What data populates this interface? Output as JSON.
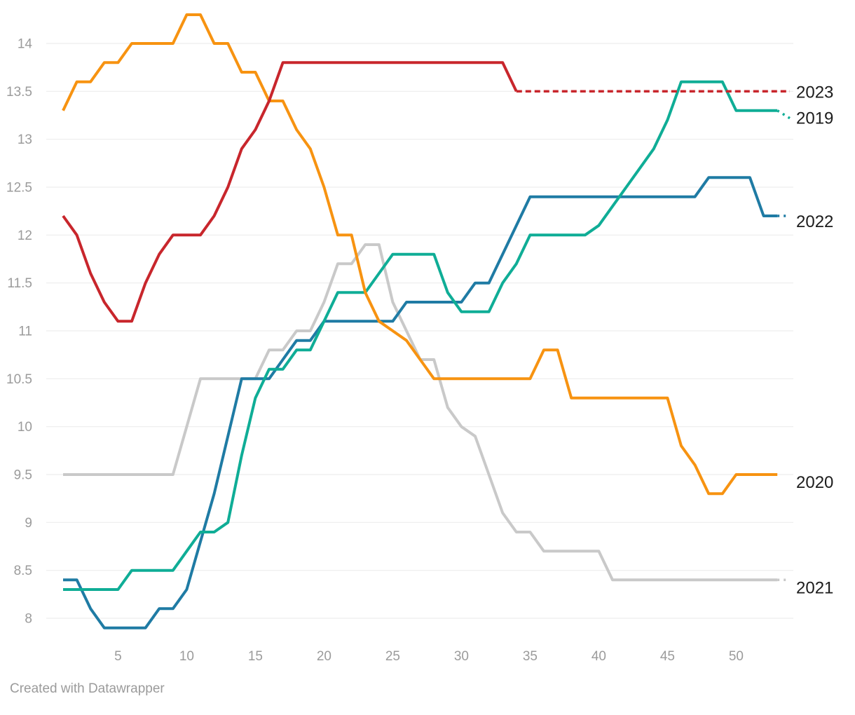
{
  "page": {
    "footer_credit": "Created with Datawrapper"
  },
  "chart_data": {
    "type": "line",
    "title": "",
    "xlabel": "",
    "ylabel": "",
    "x_unit": "week of year",
    "x_ticks": [
      5,
      10,
      15,
      20,
      25,
      30,
      35,
      40,
      45,
      50
    ],
    "y_ticks": [
      8,
      8.5,
      9,
      9.5,
      10,
      10.5,
      11,
      11.5,
      12,
      12.5,
      13,
      13.5,
      14
    ],
    "xlim": [
      1,
      53
    ],
    "ylim": [
      7.75,
      14.45
    ],
    "grid": "horizontal",
    "legend_position": "right-edge-labels",
    "draw_order": [
      "2021",
      "2022",
      "2019",
      "2020",
      "2023"
    ],
    "series": [
      {
        "name": "2019",
        "color": "#0fad96",
        "label_value": 13.22,
        "tail": {
          "to_value": 13.22,
          "dash": "dot"
        },
        "values": [
          8.3,
          8.3,
          8.3,
          8.3,
          8.3,
          8.5,
          8.5,
          8.5,
          8.5,
          8.7,
          8.9,
          8.9,
          9.0,
          9.7,
          10.3,
          10.6,
          10.6,
          10.8,
          10.8,
          11.1,
          11.4,
          11.4,
          11.4,
          11.6,
          11.8,
          11.8,
          11.8,
          11.8,
          11.4,
          11.2,
          11.2,
          11.2,
          11.5,
          11.7,
          12.0,
          12.0,
          12.0,
          12.0,
          12.0,
          12.1,
          12.3,
          12.5,
          12.7,
          12.9,
          13.2,
          13.6,
          13.6,
          13.6,
          13.6,
          13.3,
          13.3,
          13.3,
          13.3
        ]
      },
      {
        "name": "2020",
        "color": "#f79311",
        "label_value": 9.42,
        "tail": null,
        "values": [
          13.3,
          13.6,
          13.6,
          13.8,
          13.8,
          14.0,
          14.0,
          14.0,
          14.0,
          14.3,
          14.3,
          14.0,
          14.0,
          13.7,
          13.7,
          13.4,
          13.4,
          13.1,
          12.9,
          12.5,
          12.0,
          12.0,
          11.4,
          11.1,
          11.0,
          10.9,
          10.7,
          10.5,
          10.5,
          10.5,
          10.5,
          10.5,
          10.5,
          10.5,
          10.5,
          10.8,
          10.8,
          10.3,
          10.3,
          10.3,
          10.3,
          10.3,
          10.3,
          10.3,
          10.3,
          9.8,
          9.6,
          9.3,
          9.3,
          9.5,
          9.5,
          9.5,
          9.5
        ]
      },
      {
        "name": "2021",
        "color": "#c9c9c9",
        "label_value": 8.32,
        "tail": {
          "to_value": 8.4,
          "dash": "dot"
        },
        "values": [
          9.5,
          9.5,
          9.5,
          9.5,
          9.5,
          9.5,
          9.5,
          9.5,
          9.5,
          10.0,
          10.5,
          10.5,
          10.5,
          10.5,
          10.5,
          10.8,
          10.8,
          11.0,
          11.0,
          11.3,
          11.7,
          11.7,
          11.9,
          11.9,
          11.3,
          11.0,
          10.7,
          10.7,
          10.2,
          10.0,
          9.9,
          9.5,
          9.1,
          8.9,
          8.9,
          8.7,
          8.7,
          8.7,
          8.7,
          8.7,
          8.4,
          8.4,
          8.4,
          8.4,
          8.4,
          8.4,
          8.4,
          8.4,
          8.4,
          8.4,
          8.4,
          8.4,
          8.4
        ]
      },
      {
        "name": "2022",
        "color": "#1f7ba4",
        "label_value": 12.14,
        "tail": {
          "to_value": 12.2,
          "dash": "dot"
        },
        "values": [
          8.4,
          8.4,
          8.1,
          7.9,
          7.9,
          7.9,
          7.9,
          8.1,
          8.1,
          8.3,
          8.8,
          9.3,
          9.9,
          10.5,
          10.5,
          10.5,
          10.7,
          10.9,
          10.9,
          11.1,
          11.1,
          11.1,
          11.1,
          11.1,
          11.1,
          11.3,
          11.3,
          11.3,
          11.3,
          11.3,
          11.5,
          11.5,
          11.8,
          12.1,
          12.4,
          12.4,
          12.4,
          12.4,
          12.4,
          12.4,
          12.4,
          12.4,
          12.4,
          12.4,
          12.4,
          12.4,
          12.4,
          12.6,
          12.6,
          12.6,
          12.6,
          12.2,
          12.2
        ]
      },
      {
        "name": "2023",
        "color": "#c8262c",
        "label_value": 13.49,
        "tail": {
          "to_value": 13.5,
          "dash": "long"
        },
        "values": [
          12.2,
          12.0,
          11.6,
          11.3,
          11.1,
          11.1,
          11.5,
          11.8,
          12.0,
          12.0,
          12.0,
          12.2,
          12.5,
          12.9,
          13.1,
          13.4,
          13.8,
          13.8,
          13.8,
          13.8,
          13.8,
          13.8,
          13.8,
          13.8,
          13.8,
          13.8,
          13.8,
          13.8,
          13.8,
          13.8,
          13.8,
          13.8,
          13.8,
          13.5
        ]
      }
    ]
  }
}
